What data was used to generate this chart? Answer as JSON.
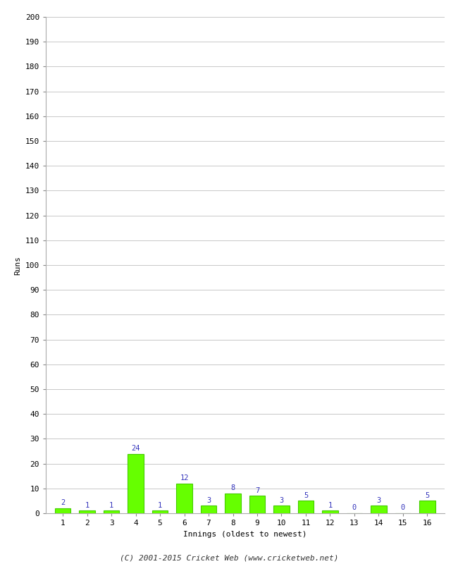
{
  "innings": [
    1,
    2,
    3,
    4,
    5,
    6,
    7,
    8,
    9,
    10,
    11,
    12,
    13,
    14,
    15,
    16
  ],
  "runs": [
    2,
    1,
    1,
    24,
    1,
    12,
    3,
    8,
    7,
    3,
    5,
    1,
    0,
    3,
    0,
    5
  ],
  "bar_color": "#66ff00",
  "bar_edge_color": "#44cc00",
  "label_color": "#3333bb",
  "xlabel": "Innings (oldest to newest)",
  "ylabel": "Runs",
  "footer": "(C) 2001-2015 Cricket Web (www.cricketweb.net)",
  "ylim": [
    0,
    200
  ],
  "ytick_step": 10,
  "background_color": "#ffffff",
  "grid_color": "#c8c8c8",
  "label_fontsize": 7.5,
  "axis_label_fontsize": 8,
  "tick_fontsize": 8,
  "footer_fontsize": 8
}
